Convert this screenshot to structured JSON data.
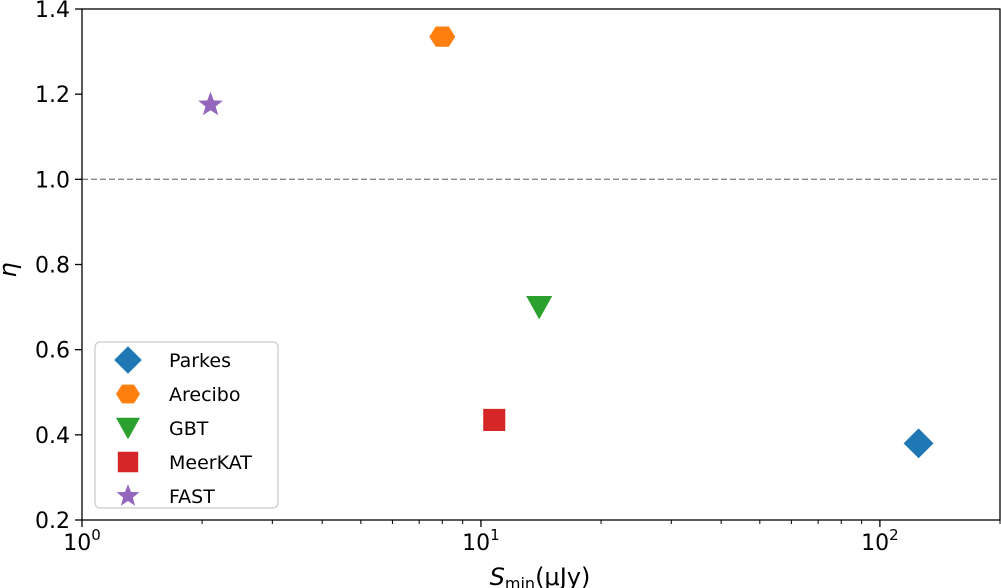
{
  "chart_data": {
    "type": "scatter",
    "title": "",
    "xlabel": {
      "main": "S",
      "sub": "min",
      "unit": "(μJy)"
    },
    "ylabel": "η",
    "xscale": "log",
    "xlim": [
      1,
      200
    ],
    "ylim": [
      0.2,
      1.4
    ],
    "yticks": [
      {
        "value": 0.2,
        "label": "0.2"
      },
      {
        "value": 0.4,
        "label": "0.4"
      },
      {
        "value": 0.6,
        "label": "0.6"
      },
      {
        "value": 0.8,
        "label": "0.8"
      },
      {
        "value": 1.0,
        "label": "1.0"
      },
      {
        "value": 1.2,
        "label": "1.2"
      },
      {
        "value": 1.4,
        "label": "1.4"
      }
    ],
    "xticks": [
      {
        "value": 1,
        "base": "10",
        "exp": "0"
      },
      {
        "value": 10,
        "base": "10",
        "exp": "1"
      },
      {
        "value": 100,
        "base": "10",
        "exp": "2"
      }
    ],
    "reference_line": {
      "y": 1.0,
      "style": "dashed",
      "color": "#888888"
    },
    "grid": false,
    "legend_position": "lower-left",
    "series": [
      {
        "name": "Parkes",
        "x": 125,
        "y": 0.38,
        "marker": "diamond",
        "color": "#1f77b4"
      },
      {
        "name": "Arecibo",
        "x": 8,
        "y": 1.335,
        "marker": "hexagon",
        "color": "#ff7f0e"
      },
      {
        "name": "GBT",
        "x": 14,
        "y": 0.7,
        "marker": "triangle-down",
        "color": "#2ca02c"
      },
      {
        "name": "MeerKAT",
        "x": 10.8,
        "y": 0.435,
        "marker": "square",
        "color": "#d62728"
      },
      {
        "name": "FAST",
        "x": 2.1,
        "y": 1.175,
        "marker": "star",
        "color": "#9467bd"
      }
    ]
  }
}
